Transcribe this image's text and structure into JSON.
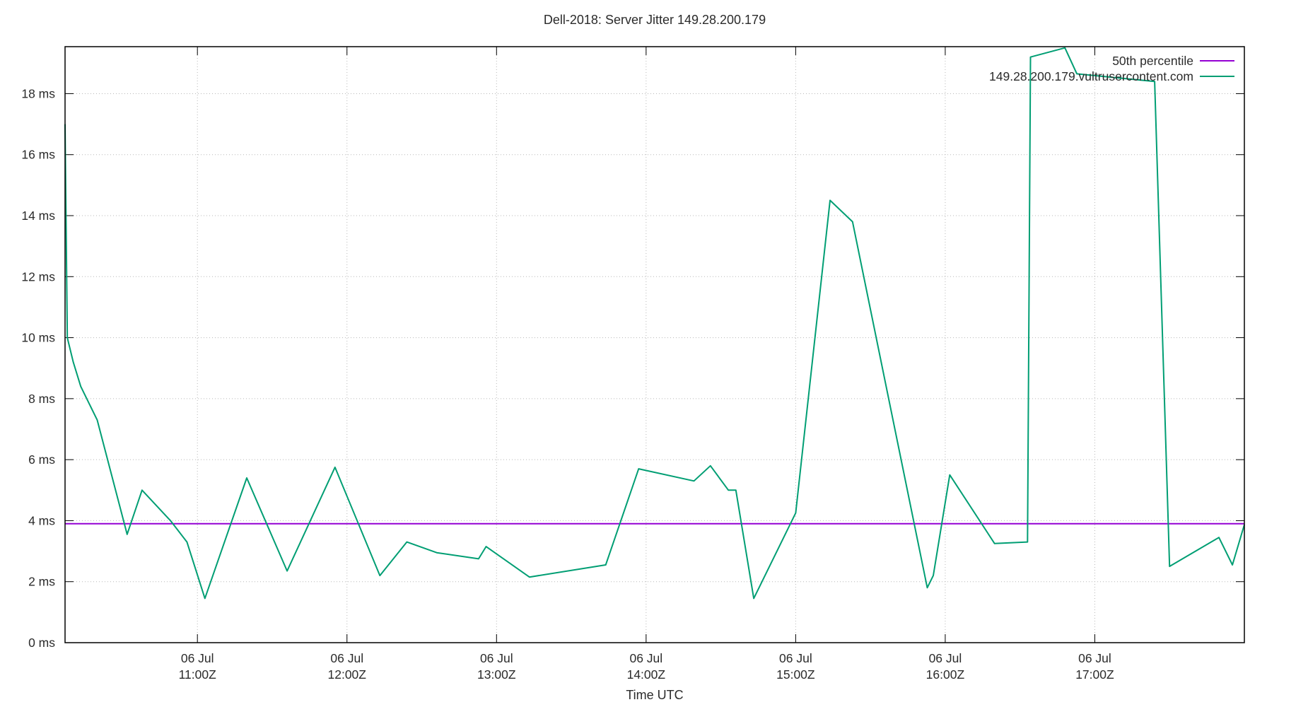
{
  "chart_data": {
    "type": "line",
    "title": "Dell-2018: Server Jitter 149.28.200.179",
    "xlabel": "Time UTC",
    "grid": true,
    "legend_position": "top-right-inside",
    "background_color": "#ffffff",
    "border_color": "#000000",
    "grid_color": "#b8b8b8",
    "text_color": "#2b2b2b",
    "x_axis": {
      "description": "Time of day UTC on 06 Jul, decimal hours",
      "min": 10.115,
      "max": 18.0,
      "ticks": [
        {
          "hours": 11,
          "line1": "06 Jul",
          "line2": "11:00Z"
        },
        {
          "hours": 12,
          "line1": "06 Jul",
          "line2": "12:00Z"
        },
        {
          "hours": 13,
          "line1": "06 Jul",
          "line2": "13:00Z"
        },
        {
          "hours": 14,
          "line1": "06 Jul",
          "line2": "14:00Z"
        },
        {
          "hours": 15,
          "line1": "06 Jul",
          "line2": "15:00Z"
        },
        {
          "hours": 16,
          "line1": "06 Jul",
          "line2": "16:00Z"
        },
        {
          "hours": 17,
          "line1": "06 Jul",
          "line2": "17:00Z"
        }
      ]
    },
    "y_axis": {
      "unit": "ms",
      "min": 0,
      "max": 19.54,
      "ticks": [
        {
          "value": 0,
          "label": "0 ms"
        },
        {
          "value": 2,
          "label": "2 ms"
        },
        {
          "value": 4,
          "label": "4 ms"
        },
        {
          "value": 6,
          "label": "6 ms"
        },
        {
          "value": 8,
          "label": "8 ms"
        },
        {
          "value": 10,
          "label": "10 ms"
        },
        {
          "value": 12,
          "label": "12 ms"
        },
        {
          "value": 14,
          "label": "14 ms"
        },
        {
          "value": 16,
          "label": "16 ms"
        },
        {
          "value": 18,
          "label": "18 ms"
        }
      ]
    },
    "series": [
      {
        "name": "50th percentile",
        "color": "#9400d3",
        "style": "hline",
        "value": 3.9
      },
      {
        "name": "149.28.200.179.vultrusercontent.com",
        "color": "#009e73",
        "style": "line",
        "points": [
          [
            10.115,
            17.0
          ],
          [
            10.13,
            10.0
          ],
          [
            10.17,
            9.2
          ],
          [
            10.22,
            8.4
          ],
          [
            10.33,
            7.3
          ],
          [
            10.53,
            3.55
          ],
          [
            10.63,
            5.0
          ],
          [
            10.82,
            4.0
          ],
          [
            10.93,
            3.3
          ],
          [
            11.05,
            1.45
          ],
          [
            11.33,
            5.4
          ],
          [
            11.6,
            2.35
          ],
          [
            11.92,
            5.75
          ],
          [
            12.22,
            2.2
          ],
          [
            12.4,
            3.3
          ],
          [
            12.6,
            2.95
          ],
          [
            12.88,
            2.75
          ],
          [
            12.93,
            3.15
          ],
          [
            13.22,
            2.15
          ],
          [
            13.73,
            2.55
          ],
          [
            13.95,
            5.7
          ],
          [
            14.32,
            5.3
          ],
          [
            14.43,
            5.8
          ],
          [
            14.55,
            5.0
          ],
          [
            14.6,
            5.0
          ],
          [
            14.72,
            1.45
          ],
          [
            15.0,
            4.25
          ],
          [
            15.23,
            14.5
          ],
          [
            15.38,
            13.8
          ],
          [
            15.88,
            1.8
          ],
          [
            15.92,
            2.2
          ],
          [
            16.03,
            5.5
          ],
          [
            16.33,
            3.25
          ],
          [
            16.55,
            3.3
          ],
          [
            16.57,
            19.2
          ],
          [
            16.8,
            19.5
          ],
          [
            16.88,
            18.65
          ],
          [
            17.4,
            18.4
          ],
          [
            17.5,
            2.5
          ],
          [
            17.83,
            3.45
          ],
          [
            17.92,
            2.55
          ],
          [
            18.0,
            3.87
          ]
        ]
      }
    ]
  }
}
